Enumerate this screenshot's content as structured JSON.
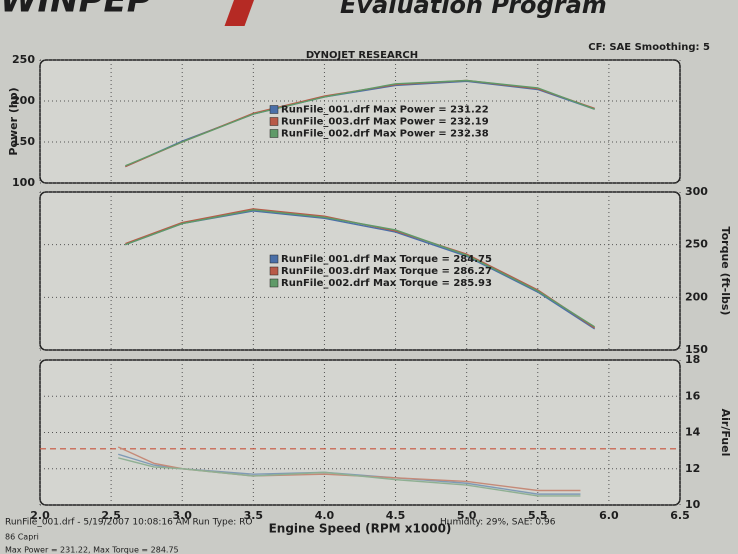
{
  "header": {
    "logo": "WINPEP",
    "program": "Evaluation Program",
    "title": "DYNOJET RESEARCH",
    "settings": "CF: SAE Smoothing: 5"
  },
  "chart_data": [
    {
      "type": "line",
      "ylabel": "Power (hp)",
      "y_axis_side": "left",
      "ylim": [
        100,
        250
      ],
      "yticks": [
        100,
        150,
        200,
        250
      ],
      "grid": true,
      "legend": "center",
      "x": [
        2.6,
        3.0,
        3.5,
        4.0,
        4.5,
        5.0,
        5.5,
        5.9
      ],
      "series": [
        {
          "name": "RunFile_001.drf Max Power = 231.22",
          "color": "#4a6fa8",
          "values": [
            120,
            151,
            184,
            205,
            219,
            224,
            214,
            190
          ]
        },
        {
          "name": "RunFile_003.drf Max Power = 232.19",
          "color": "#b85a48",
          "values": [
            120,
            150,
            185,
            206,
            220,
            225,
            215,
            191
          ]
        },
        {
          "name": "RunFile_002.drf Max Power = 232.38",
          "color": "#5f9a68",
          "values": [
            121,
            150,
            184,
            205,
            221,
            225,
            216,
            190
          ]
        }
      ]
    },
    {
      "type": "line",
      "ylabel": "Torque (ft-lbs)",
      "y_axis_side": "right",
      "ylim": [
        150,
        300
      ],
      "yticks": [
        150,
        200,
        250,
        300
      ],
      "grid": true,
      "legend": "center",
      "x": [
        2.6,
        3.0,
        3.5,
        4.0,
        4.5,
        5.0,
        5.5,
        5.9
      ],
      "series": [
        {
          "name": "RunFile_001.drf Max Torque = 284.75",
          "color": "#4a6fa8",
          "values": [
            250,
            270,
            282,
            275,
            262,
            239,
            205,
            170
          ]
        },
        {
          "name": "RunFile_003.drf Max Torque = 286.27",
          "color": "#b85a48",
          "values": [
            251,
            271,
            284,
            277,
            263,
            241,
            207,
            171
          ]
        },
        {
          "name": "RunFile_002.drf Max Torque = 285.93",
          "color": "#5f9a68",
          "values": [
            250,
            270,
            283,
            276,
            264,
            240,
            206,
            172
          ]
        }
      ]
    },
    {
      "type": "line",
      "ylabel": "Air/Fuel",
      "xlabel": "Engine Speed (RPM x1000)",
      "y_axis_side": "right",
      "xlim": [
        2.0,
        6.5
      ],
      "xticks": [
        {
          "value": 2.0,
          "label": "2.0"
        },
        2.5,
        {
          "value": 3.0,
          "label": "3.0"
        },
        3.5,
        {
          "value": 4.0,
          "label": "4.0"
        },
        4.5,
        {
          "value": 5.0,
          "label": "5.0"
        },
        5.5,
        {
          "value": 6.0,
          "label": "6.0"
        },
        6.5
      ],
      "ylim": [
        10,
        18
      ],
      "yticks": [
        10,
        12,
        14,
        16,
        18
      ],
      "grid": true,
      "reference_line": {
        "value": 13.1,
        "color": "#c8553d"
      },
      "x": [
        2.55,
        2.8,
        3.0,
        3.5,
        4.0,
        4.5,
        5.0,
        5.5,
        5.8
      ],
      "series": [
        {
          "color": "#7f9ab5",
          "values": [
            12.8,
            12.2,
            12.0,
            11.7,
            11.8,
            11.5,
            11.2,
            10.6,
            10.6
          ]
        },
        {
          "color": "#c58a78",
          "values": [
            13.2,
            12.3,
            12.0,
            11.6,
            11.7,
            11.5,
            11.3,
            10.8,
            10.8
          ]
        },
        {
          "color": "#8fb093",
          "values": [
            12.6,
            12.1,
            12.0,
            11.6,
            11.8,
            11.4,
            11.1,
            10.5,
            10.5
          ]
        }
      ]
    }
  ],
  "footer": {
    "line1": "RunFile_001.drf - 5/19/2007 10:08:16 AM  Run Type: RO",
    "line1b": "Humidity: 29%, SAE: 0.96",
    "line2": "86 Capri",
    "line3": "Max Power = 231.22, Max Torque = 284.75"
  }
}
